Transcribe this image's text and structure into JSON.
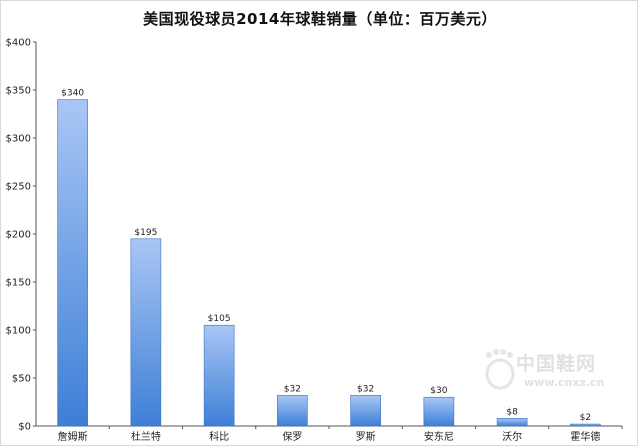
{
  "chart_data": {
    "type": "bar",
    "title": "美国现役球员2014年球鞋销量（单位：百万美元）",
    "categories": [
      "詹姆斯",
      "杜兰特",
      "科比",
      "保罗",
      "罗斯",
      "安东尼",
      "沃尔",
      "霍华德"
    ],
    "values": [
      340,
      195,
      105,
      32,
      32,
      30,
      8,
      2
    ],
    "data_labels": [
      "$340",
      "$195",
      "$105",
      "$32",
      "$32",
      "$30",
      "$8",
      "$2"
    ],
    "y_ticks": [
      "$0",
      "$50",
      "$100",
      "$150",
      "$200",
      "$250",
      "$300",
      "$350",
      "$400"
    ],
    "ylim": [
      0,
      400
    ],
    "xlabel": "",
    "ylabel": "",
    "grid": false,
    "bar_color_top": "#a9c6f5",
    "bar_color_bottom": "#3d7fd6"
  },
  "watermark": {
    "text": "中国鞋网",
    "url": "www.cnxz.cn"
  }
}
